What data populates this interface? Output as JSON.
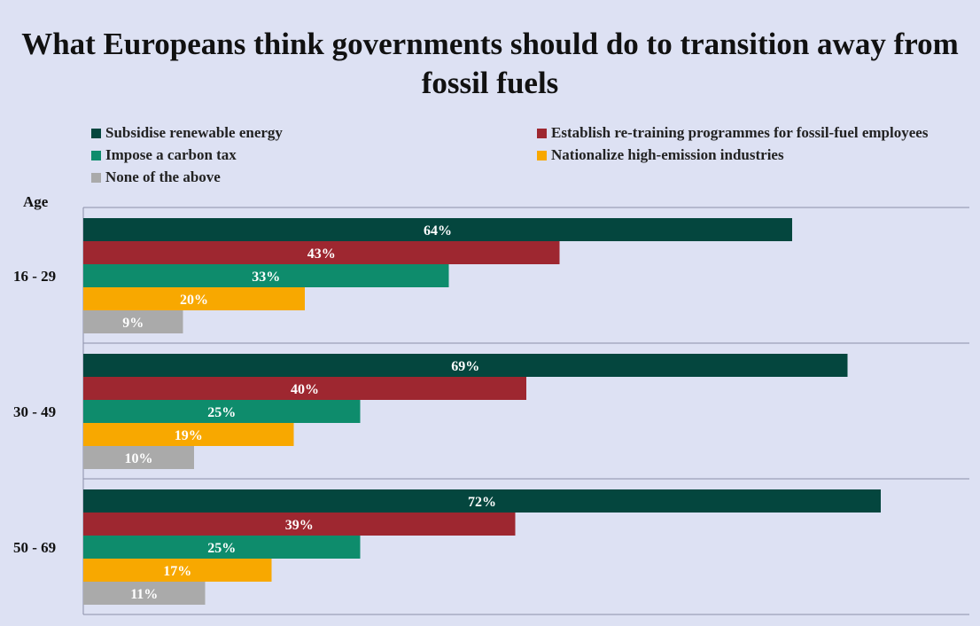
{
  "chart_data": {
    "type": "bar",
    "orientation": "horizontal",
    "title": "What Europeans think governments should do to transition away from fossil fuels",
    "ylabel": "Age",
    "categories": [
      "16 - 29",
      "30 - 49",
      "50 - 69"
    ],
    "series": [
      {
        "name": "Subsidise renewable energy",
        "color": "#04463e",
        "values": [
          64,
          69,
          72
        ],
        "labels": [
          "64%",
          "69%",
          "72%"
        ]
      },
      {
        "name": "Establish re-training programmes for fossil-fuel employees",
        "color": "#9e2730",
        "values": [
          43,
          40,
          39
        ],
        "labels": [
          "43%",
          "40%",
          "39%"
        ]
      },
      {
        "name": "Impose a carbon tax",
        "color": "#0e8c6c",
        "values": [
          33,
          25,
          25
        ],
        "labels": [
          "33%",
          "25%",
          "25%"
        ]
      },
      {
        "name": "Nationalize high-emission industries",
        "color": "#f8a800",
        "values": [
          20,
          19,
          17
        ],
        "labels": [
          "20%",
          "19%",
          "17%"
        ]
      },
      {
        "name": "None of the above",
        "color": "#aaaaaa",
        "values": [
          9,
          10,
          11
        ],
        "labels": [
          "9%",
          "10%",
          "11%"
        ]
      }
    ],
    "xlim": [
      0,
      80
    ],
    "grid": false,
    "legend_position": "top"
  }
}
